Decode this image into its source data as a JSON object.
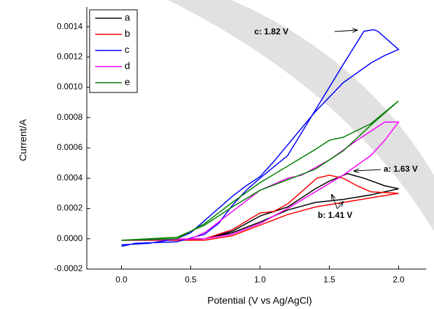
{
  "chart_data": {
    "type": "line",
    "x_label": "Potential (V vs Ag/AgCl)",
    "y_label": "Current/A",
    "xlim": [
      -0.25,
      2.2
    ],
    "ylim": [
      -0.0002,
      0.00153
    ],
    "xticks": [
      {
        "value": 0,
        "label": "0.0"
      },
      {
        "value": 0.5,
        "label": "0.5"
      },
      {
        "value": 1,
        "label": "1.0"
      },
      {
        "value": 1.5,
        "label": "1.5"
      },
      {
        "value": 2,
        "label": "2.0"
      }
    ],
    "yticks": [
      {
        "value": -0.0002,
        "label": "-0.0002"
      },
      {
        "value": 0,
        "label": "0.0000"
      },
      {
        "value": 0.0002,
        "label": "0.0002"
      },
      {
        "value": 0.0004,
        "label": "0.0004"
      },
      {
        "value": 0.0006,
        "label": "0.0006"
      },
      {
        "value": 0.0008,
        "label": "0.0008"
      },
      {
        "value": 0.001,
        "label": "0.0010"
      },
      {
        "value": 0.0012,
        "label": "0.0012"
      },
      {
        "value": 0.0014,
        "label": "0.0014"
      }
    ],
    "legend": "upper-left",
    "series": [
      {
        "name": "a",
        "color": "#000000",
        "x": [
          0,
          0.6,
          0.8,
          1.0,
          1.2,
          1.4,
          1.5,
          1.63,
          1.75,
          1.9,
          2.0,
          1.8,
          1.6,
          1.4,
          1.2,
          1.0,
          0.8,
          0.6,
          0.4,
          0
        ],
        "values": [
          -1e-05,
          0,
          5e-05,
          0.00015,
          0.00021,
          0.00033,
          0.00038,
          0.00043,
          0.0004,
          0.00035,
          0.00033,
          0.00029,
          0.00026,
          0.00024,
          0.00019,
          0.00011,
          4e-05,
          0,
          -1e-05,
          -1e-05
        ]
      },
      {
        "name": "b",
        "color": "#ff0000",
        "x": [
          0,
          0.6,
          0.8,
          1.0,
          1.1,
          1.2,
          1.3,
          1.41,
          1.5,
          1.6,
          1.7,
          1.8,
          2.0,
          1.8,
          1.6,
          1.4,
          1.2,
          1.0,
          0.8,
          0.6,
          0
        ],
        "values": [
          -1e-05,
          0,
          6e-05,
          0.00017,
          0.00018,
          0.00023,
          0.00031,
          0.0004,
          0.00042,
          0.0004,
          0.00035,
          0.00031,
          0.0003,
          0.00027,
          0.00024,
          0.00021,
          0.00016,
          9e-05,
          2e-05,
          -1e-05,
          -1e-05
        ]
      },
      {
        "name": "c",
        "color": "#0000ff",
        "x": [
          0,
          0.1,
          0.4,
          0.6,
          0.7,
          0.8,
          0.9,
          1.0,
          1.2,
          1.4,
          1.6,
          1.75,
          1.82,
          1.85,
          1.9,
          1.95,
          2.0,
          1.9,
          1.8,
          1.6,
          1.4,
          1.3,
          1.2,
          1.1,
          1.0,
          0.9,
          0.8,
          0.6,
          0.5,
          0.4,
          0.2,
          0
        ],
        "values": [
          -5e-05,
          -3e-05,
          -2e-05,
          3e-05,
          0.0001,
          0.00022,
          0.00032,
          0.0004,
          0.00055,
          0.00085,
          0.00115,
          0.00137,
          0.00138,
          0.00137,
          0.00133,
          0.00129,
          0.00125,
          0.00121,
          0.00116,
          0.00103,
          0.00084,
          0.00073,
          0.00062,
          0.00051,
          0.00041,
          0.00035,
          0.00028,
          0.00012,
          4e-05,
          0,
          -3e-05,
          -4e-05
        ]
      },
      {
        "name": "d",
        "color": "#ff00ff",
        "x": [
          0,
          0.5,
          0.6,
          0.8,
          1.0,
          1.2,
          1.3,
          1.5,
          1.7,
          1.9,
          2.0,
          1.9,
          1.8,
          1.6,
          1.4,
          1.2,
          1.0,
          0.8,
          0.6,
          0
        ],
        "values": [
          -1e-05,
          0,
          4e-05,
          0.00018,
          0.00032,
          0.0004,
          0.00042,
          0.00052,
          0.00065,
          0.00077,
          0.00077,
          0.00065,
          0.00055,
          0.00042,
          0.00031,
          0.0002,
          0.0001,
          3e-05,
          0,
          -1e-05
        ]
      },
      {
        "name": "e",
        "color": "#008000",
        "x": [
          0,
          0.4,
          0.6,
          0.8,
          1.0,
          1.2,
          1.4,
          1.5,
          1.6,
          1.8,
          2.0,
          1.8,
          1.6,
          1.4,
          1.2,
          1.0,
          0.8,
          0.6,
          0.4,
          0
        ],
        "values": [
          -1e-05,
          0,
          0.0001,
          0.00024,
          0.00037,
          0.00048,
          0.00059,
          0.00065,
          0.00067,
          0.00076,
          0.00091,
          0.00075,
          0.00058,
          0.00046,
          0.00039,
          0.00032,
          0.00021,
          9e-05,
          1e-05,
          -1e-05
        ]
      }
    ],
    "annotations": [
      "c: 1.82 V",
      "a: 1.63 V",
      "b: 1.41 V"
    ]
  }
}
